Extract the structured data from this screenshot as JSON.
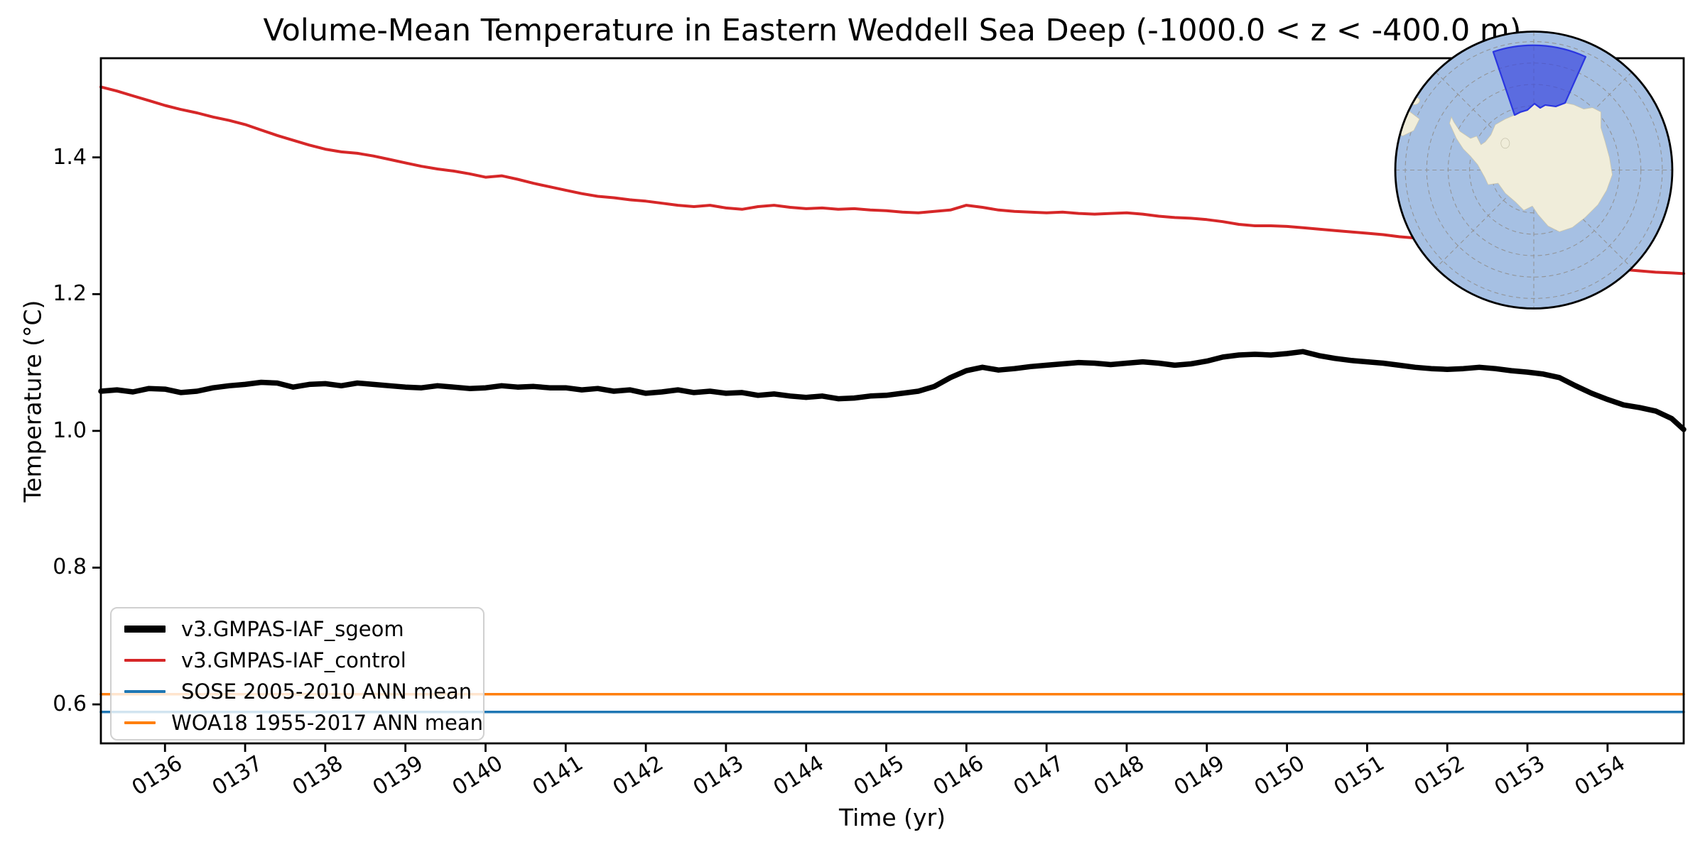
{
  "figure": {
    "title": "Volume-Mean Temperature in Eastern Weddell Sea Deep (-1000.0 < z < -400.0 m)",
    "xlabel": "Time (yr)",
    "ylabel": "Temperature (°C)"
  },
  "inset": {
    "description": "south-polar-map-with-highlighted-eastern-weddell-region",
    "colors": {
      "ocean": "#a6c0e3",
      "land": "#f0edda",
      "graticule": "#909090",
      "region_fill": "rgba(60,72,222,0.7)",
      "region_border": "#2b36e0",
      "outline": "#000000"
    }
  },
  "chart_data": {
    "type": "line",
    "title": "Volume-Mean Temperature in Eastern Weddell Sea Deep (-1000.0 < z < -400.0 m)",
    "xlabel": "Time (yr)",
    "ylabel": "Temperature (°C)",
    "xlim": [
      135.2,
      154.95
    ],
    "ylim": [
      0.543,
      1.545
    ],
    "grid": false,
    "legend_position": "lower left",
    "xticks": [
      {
        "value": 136,
        "label": "0136"
      },
      {
        "value": 137,
        "label": "0137"
      },
      {
        "value": 138,
        "label": "0138"
      },
      {
        "value": 139,
        "label": "0139"
      },
      {
        "value": 140,
        "label": "0140"
      },
      {
        "value": 141,
        "label": "0141"
      },
      {
        "value": 142,
        "label": "0142"
      },
      {
        "value": 143,
        "label": "0143"
      },
      {
        "value": 144,
        "label": "0144"
      },
      {
        "value": 145,
        "label": "0145"
      },
      {
        "value": 146,
        "label": "0146"
      },
      {
        "value": 147,
        "label": "0147"
      },
      {
        "value": 148,
        "label": "0148"
      },
      {
        "value": 149,
        "label": "0149"
      },
      {
        "value": 150,
        "label": "0150"
      },
      {
        "value": 151,
        "label": "0151"
      },
      {
        "value": 152,
        "label": "0152"
      },
      {
        "value": 153,
        "label": "0153"
      },
      {
        "value": 154,
        "label": "0154"
      }
    ],
    "yticks": [
      {
        "value": 0.6,
        "label": "0.6"
      },
      {
        "value": 0.8,
        "label": "0.8"
      },
      {
        "value": 1.0,
        "label": "1.0"
      },
      {
        "value": 1.2,
        "label": "1.2"
      },
      {
        "value": 1.4,
        "label": "1.4"
      }
    ],
    "series": [
      {
        "name": "v3.GMPAS-IAF_sgeom",
        "color": "#000000",
        "width": 7.5,
        "legend_swatch_height": 10,
        "points": [
          [
            135.2,
            1.058
          ],
          [
            135.4,
            1.06
          ],
          [
            135.6,
            1.057
          ],
          [
            135.8,
            1.062
          ],
          [
            136.0,
            1.061
          ],
          [
            136.2,
            1.056
          ],
          [
            136.4,
            1.058
          ],
          [
            136.6,
            1.063
          ],
          [
            136.8,
            1.066
          ],
          [
            137.0,
            1.068
          ],
          [
            137.2,
            1.071
          ],
          [
            137.4,
            1.07
          ],
          [
            137.6,
            1.064
          ],
          [
            137.8,
            1.068
          ],
          [
            138.0,
            1.069
          ],
          [
            138.2,
            1.066
          ],
          [
            138.4,
            1.07
          ],
          [
            138.6,
            1.068
          ],
          [
            138.8,
            1.066
          ],
          [
            139.0,
            1.064
          ],
          [
            139.2,
            1.063
          ],
          [
            139.4,
            1.066
          ],
          [
            139.6,
            1.064
          ],
          [
            139.8,
            1.062
          ],
          [
            140.0,
            1.063
          ],
          [
            140.2,
            1.066
          ],
          [
            140.4,
            1.064
          ],
          [
            140.6,
            1.065
          ],
          [
            140.8,
            1.063
          ],
          [
            141.0,
            1.063
          ],
          [
            141.2,
            1.06
          ],
          [
            141.4,
            1.062
          ],
          [
            141.6,
            1.058
          ],
          [
            141.8,
            1.06
          ],
          [
            142.0,
            1.055
          ],
          [
            142.2,
            1.057
          ],
          [
            142.4,
            1.06
          ],
          [
            142.6,
            1.056
          ],
          [
            142.8,
            1.058
          ],
          [
            143.0,
            1.055
          ],
          [
            143.2,
            1.056
          ],
          [
            143.4,
            1.052
          ],
          [
            143.6,
            1.054
          ],
          [
            143.8,
            1.051
          ],
          [
            144.0,
            1.049
          ],
          [
            144.2,
            1.051
          ],
          [
            144.4,
            1.047
          ],
          [
            144.6,
            1.048
          ],
          [
            144.8,
            1.051
          ],
          [
            145.0,
            1.052
          ],
          [
            145.2,
            1.055
          ],
          [
            145.4,
            1.058
          ],
          [
            145.6,
            1.065
          ],
          [
            145.8,
            1.078
          ],
          [
            146.0,
            1.088
          ],
          [
            146.2,
            1.093
          ],
          [
            146.4,
            1.089
          ],
          [
            146.6,
            1.091
          ],
          [
            146.8,
            1.094
          ],
          [
            147.0,
            1.096
          ],
          [
            147.2,
            1.098
          ],
          [
            147.4,
            1.1
          ],
          [
            147.6,
            1.099
          ],
          [
            147.8,
            1.097
          ],
          [
            148.0,
            1.099
          ],
          [
            148.2,
            1.101
          ],
          [
            148.4,
            1.099
          ],
          [
            148.6,
            1.096
          ],
          [
            148.8,
            1.098
          ],
          [
            149.0,
            1.102
          ],
          [
            149.2,
            1.108
          ],
          [
            149.4,
            1.111
          ],
          [
            149.6,
            1.112
          ],
          [
            149.8,
            1.111
          ],
          [
            150.0,
            1.113
          ],
          [
            150.2,
            1.116
          ],
          [
            150.4,
            1.11
          ],
          [
            150.6,
            1.106
          ],
          [
            150.8,
            1.103
          ],
          [
            151.0,
            1.101
          ],
          [
            151.2,
            1.099
          ],
          [
            151.4,
            1.096
          ],
          [
            151.6,
            1.093
          ],
          [
            151.8,
            1.091
          ],
          [
            152.0,
            1.09
          ],
          [
            152.2,
            1.091
          ],
          [
            152.4,
            1.093
          ],
          [
            152.6,
            1.091
          ],
          [
            152.8,
            1.088
          ],
          [
            153.0,
            1.086
          ],
          [
            153.2,
            1.083
          ],
          [
            153.4,
            1.078
          ],
          [
            153.6,
            1.066
          ],
          [
            153.8,
            1.055
          ],
          [
            154.0,
            1.046
          ],
          [
            154.2,
            1.038
          ],
          [
            154.4,
            1.034
          ],
          [
            154.6,
            1.029
          ],
          [
            154.8,
            1.018
          ],
          [
            154.95,
            1.002
          ]
        ]
      },
      {
        "name": "v3.GMPAS-IAF_control",
        "color": "#d62728",
        "width": 4,
        "legend_swatch_height": 4,
        "points": [
          [
            135.2,
            1.503
          ],
          [
            135.4,
            1.497
          ],
          [
            135.6,
            1.49
          ],
          [
            135.8,
            1.483
          ],
          [
            136.0,
            1.476
          ],
          [
            136.2,
            1.47
          ],
          [
            136.4,
            1.465
          ],
          [
            136.6,
            1.459
          ],
          [
            136.8,
            1.454
          ],
          [
            137.0,
            1.448
          ],
          [
            137.2,
            1.44
          ],
          [
            137.4,
            1.432
          ],
          [
            137.6,
            1.425
          ],
          [
            137.8,
            1.418
          ],
          [
            138.0,
            1.412
          ],
          [
            138.2,
            1.408
          ],
          [
            138.4,
            1.406
          ],
          [
            138.6,
            1.402
          ],
          [
            138.8,
            1.397
          ],
          [
            139.0,
            1.392
          ],
          [
            139.2,
            1.387
          ],
          [
            139.4,
            1.383
          ],
          [
            139.6,
            1.38
          ],
          [
            139.8,
            1.376
          ],
          [
            140.0,
            1.371
          ],
          [
            140.2,
            1.373
          ],
          [
            140.4,
            1.368
          ],
          [
            140.6,
            1.362
          ],
          [
            140.8,
            1.357
          ],
          [
            141.0,
            1.352
          ],
          [
            141.2,
            1.347
          ],
          [
            141.4,
            1.343
          ],
          [
            141.6,
            1.341
          ],
          [
            141.8,
            1.338
          ],
          [
            142.0,
            1.336
          ],
          [
            142.2,
            1.333
          ],
          [
            142.4,
            1.33
          ],
          [
            142.6,
            1.328
          ],
          [
            142.8,
            1.33
          ],
          [
            143.0,
            1.326
          ],
          [
            143.2,
            1.324
          ],
          [
            143.4,
            1.328
          ],
          [
            143.6,
            1.33
          ],
          [
            143.8,
            1.327
          ],
          [
            144.0,
            1.325
          ],
          [
            144.2,
            1.326
          ],
          [
            144.4,
            1.324
          ],
          [
            144.6,
            1.325
          ],
          [
            144.8,
            1.323
          ],
          [
            145.0,
            1.322
          ],
          [
            145.2,
            1.32
          ],
          [
            145.4,
            1.319
          ],
          [
            145.6,
            1.321
          ],
          [
            145.8,
            1.323
          ],
          [
            146.0,
            1.33
          ],
          [
            146.2,
            1.327
          ],
          [
            146.4,
            1.323
          ],
          [
            146.6,
            1.321
          ],
          [
            146.8,
            1.32
          ],
          [
            147.0,
            1.319
          ],
          [
            147.2,
            1.32
          ],
          [
            147.4,
            1.318
          ],
          [
            147.6,
            1.317
          ],
          [
            147.8,
            1.318
          ],
          [
            148.0,
            1.319
          ],
          [
            148.2,
            1.317
          ],
          [
            148.4,
            1.314
          ],
          [
            148.6,
            1.312
          ],
          [
            148.8,
            1.311
          ],
          [
            149.0,
            1.309
          ],
          [
            149.2,
            1.306
          ],
          [
            149.4,
            1.302
          ],
          [
            149.6,
            1.3
          ],
          [
            149.8,
            1.3
          ],
          [
            150.0,
            1.299
          ],
          [
            150.2,
            1.297
          ],
          [
            150.4,
            1.295
          ],
          [
            150.6,
            1.293
          ],
          [
            150.8,
            1.291
          ],
          [
            151.0,
            1.289
          ],
          [
            151.2,
            1.287
          ],
          [
            151.4,
            1.284
          ],
          [
            151.6,
            1.282
          ],
          [
            151.8,
            1.278
          ],
          [
            152.0,
            1.274
          ],
          [
            152.2,
            1.27
          ],
          [
            152.4,
            1.266
          ],
          [
            152.6,
            1.262
          ],
          [
            152.8,
            1.258
          ],
          [
            153.0,
            1.254
          ],
          [
            153.2,
            1.25
          ],
          [
            153.4,
            1.247
          ],
          [
            153.6,
            1.244
          ],
          [
            153.8,
            1.241
          ],
          [
            154.0,
            1.239
          ],
          [
            154.2,
            1.236
          ],
          [
            154.4,
            1.234
          ],
          [
            154.6,
            1.232
          ],
          [
            154.8,
            1.231
          ],
          [
            154.95,
            1.23
          ]
        ]
      },
      {
        "name": "SOSE 2005-2010 ANN mean",
        "color": "#1f77b4",
        "width": 3.5,
        "legend_swatch_height": 4,
        "constant": 0.589
      },
      {
        "name": "WOA18 1955-2017 ANN mean",
        "color": "#ff7f0e",
        "width": 3.5,
        "legend_swatch_height": 4,
        "constant": 0.615
      }
    ]
  }
}
